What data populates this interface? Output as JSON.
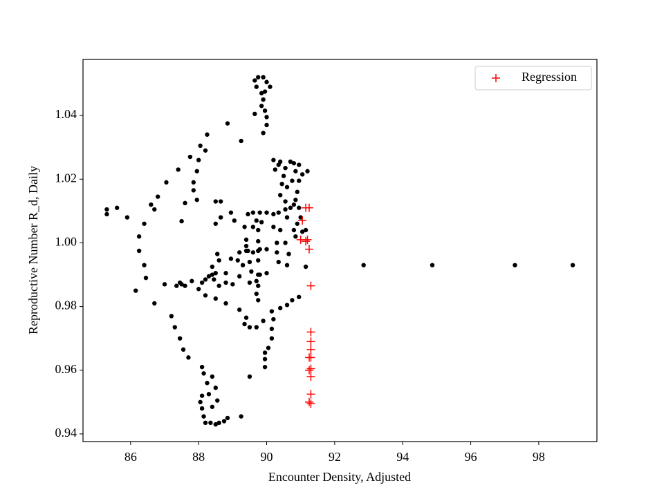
{
  "chart_data": {
    "type": "scatter",
    "xlabel": "Encounter Density, Adjusted",
    "ylabel": "Reproductive Number R_d, Daily",
    "xlim": [
      84.6,
      99.71
    ],
    "ylim": [
      0.9376,
      1.0576
    ],
    "xticks": [
      86,
      88,
      90,
      92,
      94,
      96,
      98
    ],
    "yticks": [
      0.94,
      0.96,
      0.98,
      {
        "value": 1,
        "label": "1.00"
      },
      1.02,
      1.04
    ],
    "legend": "upper right",
    "series": [
      {
        "color": "#000000",
        "marker": "o",
        "x": [
          92.85,
          94.87,
          97.3,
          99.0,
          85.3,
          85.3,
          85.6,
          85.9,
          86.25,
          86.25,
          86.4,
          86.45,
          86.15,
          86.7,
          87.0,
          87.2,
          87.3,
          87.45,
          87.55,
          87.7,
          86.4,
          86.6,
          86.7,
          86.8,
          87.05,
          87.4,
          87.6,
          87.5,
          87.75,
          88.0,
          88.05,
          88.2,
          88.25,
          87.95,
          87.85,
          87.85,
          87.95,
          88.5,
          88.65,
          88.5,
          88.85,
          89.25,
          88.1,
          88.15,
          88.25,
          88.3,
          88.1,
          88.05,
          88.1,
          88.15,
          88.2,
          88.35,
          88.5,
          88.6,
          88.75,
          88.85,
          89.25,
          88.4,
          88.5,
          88.55,
          88.4,
          87.5,
          87.35,
          87.45,
          87.6,
          87.8,
          88.0,
          88.1,
          88.2,
          88.3,
          88.5,
          88.45,
          88.55,
          88.6,
          88.4,
          88.4,
          88.8,
          88.95,
          89.2,
          89.4,
          89.6,
          89.8,
          88.6,
          88.8,
          89.0,
          89.2,
          89.5,
          89.7,
          89.8,
          90.0,
          88.2,
          88.5,
          88.8,
          89.2,
          89.4,
          89.35,
          89.5,
          89.7,
          89.9,
          90.15,
          90.4,
          90.6,
          90.75,
          90.95,
          90.2,
          90.15,
          90.15,
          90.05,
          89.95,
          89.95,
          89.95,
          89.5,
          89.45,
          89.35,
          89.4,
          89.4,
          89.45,
          89.5,
          89.55,
          89.3,
          89.15,
          89.6,
          89.8,
          90.0,
          90.2,
          89.85,
          89.75,
          89.75,
          89.75,
          89.75,
          89.75,
          89.75,
          89.7,
          89.75,
          90.0,
          90.2,
          90.35,
          90.55,
          90.7,
          90.8,
          90.85,
          90.95,
          91.0,
          90.9,
          90.8,
          90.85,
          91.05,
          91.15,
          90.6,
          90.4,
          90.3,
          90.3,
          90.35,
          90.55,
          90.65,
          90.6,
          91.15,
          91.2,
          90.95,
          91.05,
          90.9,
          90.8,
          90.7,
          90.55,
          90.4,
          90.35,
          90.25,
          90.45,
          90.4,
          90.6,
          90.75,
          90.85,
          90.55,
          90.2,
          90.5,
          90.95,
          89.65,
          89.75,
          89.9,
          90.0,
          90.1,
          89.7,
          89.85,
          89.95,
          89.9,
          89.85,
          89.95,
          89.65,
          90.0,
          90.0,
          89.9,
          88.65,
          88.95,
          89.05,
          89.7,
          89.6
        ],
        "values": [
          0.993,
          0.993,
          0.993,
          0.993,
          1.0105,
          1.009,
          1.011,
          1.008,
          1.002,
          0.9975,
          0.993,
          0.989,
          0.985,
          0.981,
          0.987,
          0.977,
          0.9735,
          0.97,
          0.9665,
          0.964,
          1.006,
          1.012,
          1.0105,
          1.0145,
          1.019,
          1.023,
          1.0125,
          1.0068,
          1.027,
          1.026,
          1.0305,
          1.029,
          1.034,
          1.0225,
          1.019,
          1.0165,
          1.0135,
          1.013,
          1.013,
          1.006,
          1.0375,
          1.032,
          0.961,
          0.959,
          0.956,
          0.9525,
          0.952,
          0.95,
          0.948,
          0.9455,
          0.9435,
          0.9435,
          0.943,
          0.9435,
          0.944,
          0.945,
          0.9455,
          0.958,
          0.9545,
          0.9505,
          0.9485,
          0.987,
          0.9865,
          0.9875,
          0.9865,
          0.988,
          0.9855,
          0.9875,
          0.9885,
          0.9895,
          0.9905,
          0.9885,
          0.9965,
          0.9945,
          0.9925,
          0.99,
          0.9905,
          0.995,
          0.997,
          0.9975,
          0.997,
          0.998,
          0.9865,
          0.9875,
          0.987,
          0.9895,
          0.9875,
          0.988,
          0.99,
          0.9905,
          0.9835,
          0.9825,
          0.981,
          0.979,
          0.9765,
          0.9745,
          0.9735,
          0.9735,
          0.9755,
          0.9785,
          0.9795,
          0.9805,
          0.982,
          0.983,
          0.976,
          0.973,
          0.97,
          0.967,
          0.9655,
          0.9635,
          0.961,
          0.958,
          1.009,
          1.005,
          1.001,
          0.999,
          0.9975,
          0.994,
          0.991,
          0.993,
          0.9945,
          1.0095,
          1.0095,
          1.0095,
          1.009,
          1.0065,
          1.004,
          1.0005,
          0.9975,
          0.9945,
          0.99,
          0.9865,
          0.984,
          0.982,
          0.998,
          1.005,
          1.0095,
          1.0105,
          1.011,
          1.012,
          1.0135,
          1.011,
          1.008,
          1.006,
          1.004,
          1.002,
          1.0035,
          1.004,
          1.008,
          1.004,
          1.0,
          0.997,
          0.994,
          1.0,
          0.9965,
          0.993,
          0.9925,
          1.0225,
          1.0195,
          1.0215,
          1.016,
          1.025,
          1.0255,
          1.0235,
          1.0255,
          1.0245,
          1.023,
          1.0185,
          1.015,
          1.0175,
          1.0195,
          1.0225,
          1.013,
          1.026,
          1.021,
          1.0245,
          1.051,
          1.052,
          1.052,
          1.0505,
          1.049,
          1.049,
          1.047,
          1.0475,
          1.045,
          1.043,
          1.0415,
          1.0405,
          1.0395,
          1.037,
          1.0345,
          1.008,
          1.0095,
          1.007,
          1.007,
          1.005
        ]
      },
      {
        "name": "Regression",
        "color": "#ff0000",
        "marker": "+",
        "x": [
          91.15,
          91.25,
          91.05,
          91.0,
          91.15,
          91.2,
          91.25,
          91.3,
          91.3,
          91.3,
          91.3,
          91.25,
          91.3,
          91.25,
          91.3,
          91.3,
          91.3,
          91.25,
          91.3
        ],
        "values": [
          1.011,
          1.011,
          1.007,
          1.001,
          1.0005,
          1.001,
          0.998,
          0.9865,
          0.972,
          0.969,
          0.9665,
          0.964,
          0.964,
          0.96,
          0.9605,
          0.958,
          0.9525,
          0.95,
          0.9495
        ]
      }
    ]
  }
}
